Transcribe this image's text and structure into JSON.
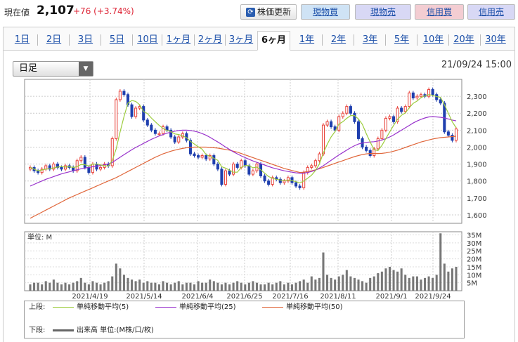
{
  "header": {
    "price_label": "現在値",
    "price": "2,107",
    "change": "+76 (+3.74%)",
    "update_label": "株価更新",
    "buttons": [
      "現物買",
      "現物売",
      "信用買",
      "信用売"
    ]
  },
  "tabs": [
    "1日",
    "2日",
    "3日",
    "5日",
    "10日",
    "1ヶ月",
    "2ヶ月",
    "3ヶ月",
    "6ヶ月",
    "1年",
    "2年",
    "3年",
    "5年",
    "10年",
    "20年",
    "30年"
  ],
  "selected_tab": "6ヶ月",
  "period_select": "日足",
  "datetime": "21/09/24 15:00",
  "legend": {
    "upper_label": "上段:",
    "lower_label": "下段:",
    "ma5": "単純移動平均(5)",
    "ma25": "単純移動平均(25)",
    "ma50": "単純移動平均(50)",
    "volume": "出来高 単位:(M株/口/枚)"
  },
  "volume_unit": "単位: M",
  "colors": {
    "up": "#e8423a",
    "down": "#1f3fae",
    "ma5": "#9ccc3d",
    "ma25": "#9933cc",
    "ma50": "#e0663a",
    "volume": "#777777"
  },
  "chart_data": [
    {
      "type": "line",
      "title": "",
      "x_ticks": [
        "2021/4/19",
        "2021/5/14",
        "2021/6/4",
        "2021/6/25",
        "2021/7/16",
        "2021/8/11",
        "2021/9/1",
        "2021/9/24"
      ],
      "ylim": [
        1550,
        2400
      ],
      "y_ticks": [
        "1,600",
        "1,700",
        "1,800",
        "1,900",
        "2,000",
        "2,100",
        "2,200",
        "2,300"
      ],
      "y_tick_values": [
        1600,
        1700,
        1800,
        1900,
        2000,
        2100,
        2200,
        2300
      ],
      "close": [
        1880,
        1860,
        1850,
        1870,
        1890,
        1870,
        1900,
        1880,
        1870,
        1890,
        1880,
        1860,
        1920,
        1940,
        1880,
        1850,
        1900,
        1870,
        1880,
        1900,
        1890,
        2050,
        2280,
        2330,
        2310,
        2250,
        2180,
        2230,
        2240,
        2160,
        2130,
        2100,
        2080,
        2080,
        2120,
        2100,
        2060,
        2030,
        2060,
        2080,
        2040,
        1960,
        1950,
        1940,
        1950,
        1930,
        1950,
        1900,
        1870,
        1780,
        1860,
        1840,
        1900,
        1880,
        1920,
        1890,
        1840,
        1860,
        1900,
        1830,
        1800,
        1780,
        1820,
        1810,
        1790,
        1800,
        1820,
        1790,
        1770,
        1760,
        1850,
        1880,
        1890,
        1920,
        1960,
        2130,
        2150,
        2120,
        2100,
        2180,
        2200,
        2240,
        2200,
        2150,
        2050,
        2000,
        1980,
        1950,
        1990,
        2050,
        2100,
        2170,
        2180,
        2150,
        2230,
        2210,
        2240,
        2320,
        2290,
        2300,
        2310,
        2300,
        2340,
        2310,
        2280,
        2260,
        2090,
        2070,
        2040,
        2107
      ],
      "ma5": [
        1880,
        1870,
        1860,
        1865,
        1870,
        1872,
        1877,
        1882,
        1885,
        1882,
        1884,
        1880,
        1884,
        1898,
        1896,
        1888,
        1900,
        1900,
        1895,
        1890,
        1888,
        1922,
        1990,
        2090,
        2180,
        2260,
        2275,
        2270,
        2250,
        2210,
        2198,
        2172,
        2150,
        2128,
        2110,
        2098,
        2092,
        2078,
        2074,
        2066,
        2056,
        2034,
        2018,
        2002,
        1988,
        1956,
        1946,
        1934,
        1922,
        1884,
        1876,
        1864,
        1852,
        1852,
        1880,
        1892,
        1890,
        1878,
        1882,
        1866,
        1846,
        1826,
        1816,
        1810,
        1806,
        1802,
        1806,
        1802,
        1796,
        1788,
        1800,
        1816,
        1834,
        1862,
        1900,
        1966,
        2016,
        2060,
        2092,
        2136,
        2150,
        2170,
        2186,
        2186,
        2166,
        2134,
        2080,
        2030,
        1984,
        1980,
        2010,
        2050,
        2090,
        2128,
        2164,
        2188,
        2202,
        2232,
        2258,
        2272,
        2292,
        2302,
        2310,
        2306,
        2298,
        2294,
        2250,
        2200,
        2150,
        2114
      ],
      "ma25": [
        1770,
        1780,
        1790,
        1800,
        1810,
        1818,
        1826,
        1834,
        1842,
        1848,
        1854,
        1860,
        1866,
        1872,
        1876,
        1880,
        1884,
        1888,
        1892,
        1896,
        1900,
        1910,
        1925,
        1940,
        1955,
        1970,
        1985,
        1998,
        2010,
        2022,
        2034,
        2046,
        2056,
        2066,
        2074,
        2082,
        2088,
        2094,
        2098,
        2100,
        2100,
        2098,
        2094,
        2088,
        2080,
        2070,
        2058,
        2044,
        2030,
        2016,
        2000,
        1986,
        1972,
        1960,
        1948,
        1938,
        1928,
        1918,
        1910,
        1902,
        1894,
        1886,
        1878,
        1872,
        1866,
        1860,
        1856,
        1852,
        1848,
        1846,
        1846,
        1850,
        1856,
        1864,
        1876,
        1890,
        1906,
        1922,
        1938,
        1954,
        1968,
        1982,
        1996,
        2008,
        2018,
        2024,
        2028,
        2030,
        2032,
        2036,
        2042,
        2050,
        2060,
        2072,
        2086,
        2100,
        2114,
        2128,
        2142,
        2154,
        2164,
        2172,
        2178,
        2180,
        2178,
        2176,
        2172,
        2166,
        2160,
        2155
      ],
      "ma50": [
        1580,
        1592,
        1604,
        1616,
        1628,
        1640,
        1652,
        1664,
        1676,
        1688,
        1700,
        1710,
        1720,
        1730,
        1740,
        1750,
        1760,
        1770,
        1780,
        1790,
        1800,
        1810,
        1820,
        1832,
        1844,
        1856,
        1868,
        1880,
        1892,
        1904,
        1916,
        1928,
        1940,
        1950,
        1960,
        1968,
        1976,
        1982,
        1988,
        1992,
        1996,
        1998,
        2000,
        2000,
        2000,
        2000,
        1998,
        1996,
        1994,
        1990,
        1986,
        1982,
        1976,
        1970,
        1962,
        1954,
        1946,
        1938,
        1930,
        1922,
        1914,
        1906,
        1898,
        1890,
        1882,
        1874,
        1868,
        1862,
        1856,
        1850,
        1852,
        1856,
        1860,
        1866,
        1872,
        1880,
        1888,
        1896,
        1904,
        1912,
        1920,
        1928,
        1936,
        1944,
        1950,
        1956,
        1960,
        1962,
        1962,
        1962,
        1963,
        1966,
        1970,
        1976,
        1982,
        1990,
        1998,
        2006,
        2014,
        2022,
        2030,
        2036,
        2042,
        2048,
        2052,
        2056,
        2058,
        2060,
        2062,
        2064
      ]
    },
    {
      "type": "bar",
      "title": "",
      "ylabel": "単位: M",
      "ylim": [
        0,
        37
      ],
      "y_ticks": [
        "5M",
        "10M",
        "15M",
        "20M",
        "25M",
        "30M",
        "35M"
      ],
      "y_tick_values": [
        5,
        10,
        15,
        20,
        25,
        30,
        35
      ],
      "volume": [
        4,
        5,
        5,
        4,
        6,
        5,
        7,
        5,
        4,
        5,
        4,
        5,
        6,
        8,
        5,
        4,
        6,
        5,
        4,
        5,
        6,
        9,
        17,
        14,
        10,
        8,
        7,
        6,
        7,
        5,
        6,
        5,
        5,
        4,
        6,
        5,
        4,
        5,
        6,
        4,
        5,
        5,
        4,
        6,
        5,
        5,
        7,
        6,
        5,
        4,
        5,
        4,
        5,
        6,
        5,
        4,
        5,
        6,
        5,
        4,
        4,
        5,
        4,
        5,
        6,
        4,
        5,
        4,
        5,
        6,
        7,
        5,
        9,
        7,
        8,
        24,
        10,
        8,
        7,
        9,
        10,
        13,
        9,
        8,
        7,
        6,
        5,
        8,
        9,
        11,
        12,
        14,
        15,
        13,
        12,
        14,
        10,
        8,
        9,
        9,
        7,
        8,
        9,
        8,
        10,
        36,
        17,
        12,
        14,
        15
      ]
    }
  ]
}
